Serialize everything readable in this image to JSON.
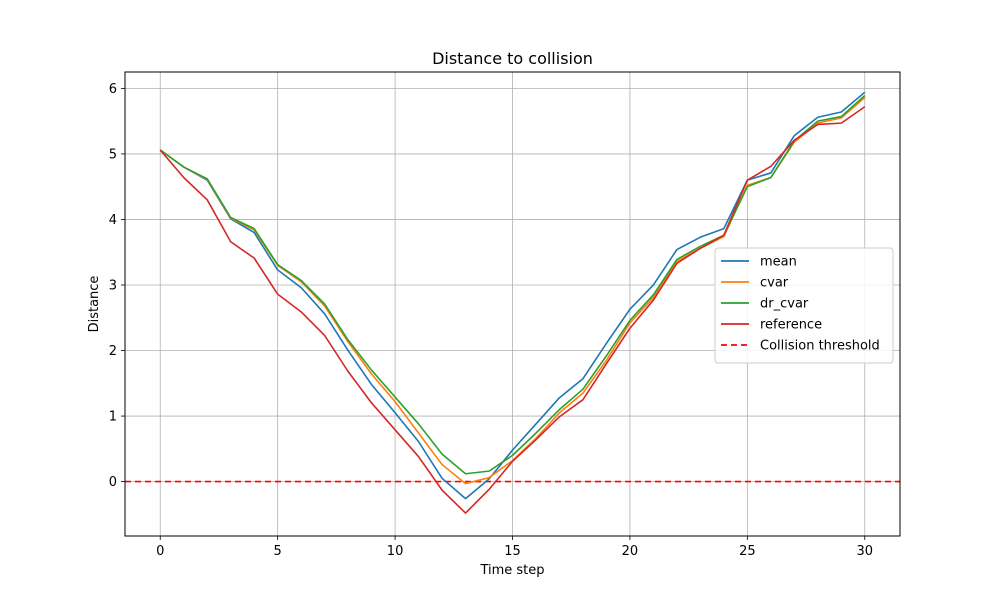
{
  "chart_data": {
    "type": "line",
    "title": "Distance to collision",
    "xlabel": "Time step",
    "ylabel": "Distance",
    "xlim": [
      -1.5,
      31.5
    ],
    "ylim": [
      -0.83,
      6.25
    ],
    "xticks": [
      0,
      5,
      10,
      15,
      20,
      25,
      30
    ],
    "yticks": [
      0,
      1,
      2,
      3,
      4,
      5,
      6
    ],
    "grid": true,
    "legend_position": "center-right",
    "x": [
      0,
      1,
      2,
      3,
      4,
      5,
      6,
      7,
      8,
      9,
      10,
      11,
      12,
      13,
      14,
      15,
      16,
      17,
      18,
      19,
      20,
      21,
      22,
      23,
      24,
      25,
      26,
      27,
      28,
      29,
      30
    ],
    "series": [
      {
        "name": "mean",
        "color": "#1f77b4",
        "style": "solid",
        "values": [
          5.06,
          4.8,
          4.6,
          4.01,
          3.8,
          3.23,
          2.96,
          2.56,
          2.0,
          1.48,
          1.05,
          0.61,
          0.05,
          -0.26,
          0.04,
          0.48,
          0.88,
          1.28,
          1.57,
          2.11,
          2.63,
          3.0,
          3.54,
          3.73,
          3.86,
          4.6,
          4.71,
          5.28,
          5.56,
          5.64,
          5.94
        ]
      },
      {
        "name": "cvar",
        "color": "#ff7f0e",
        "style": "solid",
        "values": [
          5.06,
          4.8,
          4.61,
          4.02,
          3.84,
          3.3,
          3.05,
          2.68,
          2.13,
          1.64,
          1.22,
          0.74,
          0.26,
          -0.03,
          0.06,
          0.32,
          0.66,
          1.05,
          1.35,
          1.85,
          2.42,
          2.81,
          3.36,
          3.56,
          3.74,
          4.52,
          4.64,
          5.18,
          5.47,
          5.55,
          5.86
        ]
      },
      {
        "name": "dr_cvar",
        "color": "#2ca02c",
        "style": "solid",
        "values": [
          5.06,
          4.8,
          4.62,
          4.03,
          3.86,
          3.31,
          3.07,
          2.71,
          2.16,
          1.7,
          1.29,
          0.88,
          0.42,
          0.12,
          0.16,
          0.4,
          0.74,
          1.1,
          1.41,
          1.92,
          2.46,
          2.85,
          3.39,
          3.59,
          3.76,
          4.5,
          4.64,
          5.2,
          5.5,
          5.57,
          5.89
        ]
      },
      {
        "name": "reference",
        "color": "#d62728",
        "style": "solid",
        "values": [
          5.06,
          4.64,
          4.3,
          3.66,
          3.41,
          2.86,
          2.59,
          2.23,
          1.68,
          1.2,
          0.79,
          0.38,
          -0.13,
          -0.48,
          -0.12,
          0.31,
          0.64,
          0.99,
          1.25,
          1.8,
          2.34,
          2.77,
          3.33,
          3.56,
          3.76,
          4.6,
          4.81,
          5.21,
          5.45,
          5.47,
          5.72
        ]
      },
      {
        "name": "Collision threshold",
        "color": "#ff0000",
        "style": "dashed",
        "values": "constant",
        "y": 0
      }
    ]
  }
}
